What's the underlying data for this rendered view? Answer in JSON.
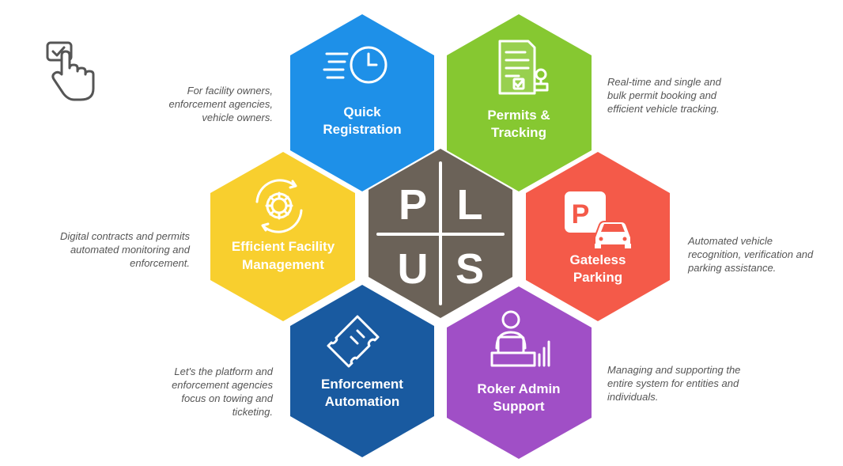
{
  "center": {
    "letters": [
      "P",
      "L",
      "U",
      "S"
    ],
    "color": "#6b6258"
  },
  "hexagons": [
    {
      "id": "quick-registration",
      "title": [
        "Quick",
        "Registration"
      ],
      "color": "#1e90e8",
      "icon": "clock-icon",
      "description": [
        "For facility owners,",
        "enforcement agencies,",
        "vehicle owners."
      ]
    },
    {
      "id": "permits-tracking",
      "title": [
        "Permits &",
        "Tracking"
      ],
      "color": "#86c831",
      "icon": "permit-document-icon",
      "description": [
        "Real-time and single and",
        "bulk permit booking and",
        "efficient vehicle tracking."
      ]
    },
    {
      "id": "gateless-parking",
      "title": [
        "Gateless",
        "Parking"
      ],
      "color": "#f45a49",
      "icon": "parking-car-icon",
      "description": [
        "Automated vehicle",
        "recognition, verification and",
        "parking assistance."
      ]
    },
    {
      "id": "roker-admin-support",
      "title": [
        "Roker Admin",
        "Support"
      ],
      "color": "#a04fc6",
      "icon": "admin-desk-icon",
      "description": [
        "Managing and supporting the",
        "entire system for entities and",
        "individuals."
      ]
    },
    {
      "id": "enforcement-automation",
      "title": [
        "Enforcement",
        "Automation"
      ],
      "color": "#195aa0",
      "icon": "ticket-icon",
      "description": [
        "Let's the platform and",
        "enforcement agencies",
        "focus on towing and",
        "ticketing."
      ]
    },
    {
      "id": "efficient-facility-management",
      "title": [
        "Efficient Facility",
        "Management"
      ],
      "color": "#f8cf2e",
      "icon": "gear-icon",
      "description": [
        "Digital contracts and permits",
        "automated monitoring and",
        "enforcement."
      ]
    }
  ],
  "corner_icon": "touch-checkbox-icon"
}
